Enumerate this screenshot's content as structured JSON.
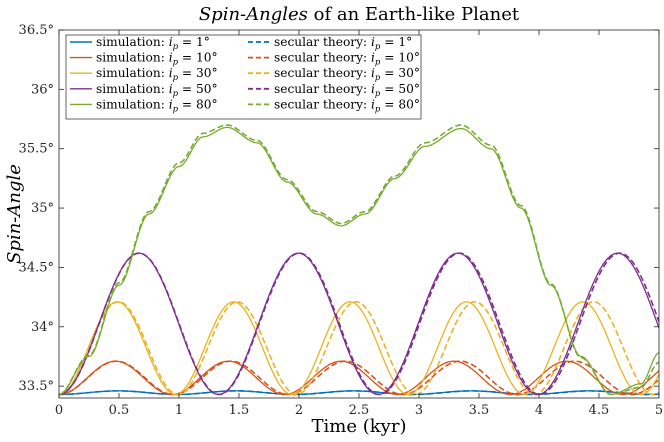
{
  "chart_data": {
    "type": "line",
    "title": "Spin-Angles of an Earth-like Planet",
    "title_parts": [
      {
        "text": "Spin-Angles",
        "italic": true
      },
      {
        "text": " of an Earth-like Planet",
        "italic": false
      }
    ],
    "xlabel": "Time (kyr)",
    "ylabel": "Spin-Angle",
    "xlim": [
      0,
      5
    ],
    "ylim": [
      33.4,
      36.5
    ],
    "xticks": [
      0,
      0.5,
      1,
      1.5,
      2,
      2.5,
      3,
      3.5,
      4,
      4.5,
      5
    ],
    "xtick_labels": [
      "0",
      "0.5",
      "1",
      "1.5",
      "2",
      "2.5",
      "3",
      "3.5",
      "4",
      "4.5",
      "5"
    ],
    "yticks": [
      33.5,
      34,
      34.5,
      35,
      35.5,
      36,
      36.5
    ],
    "ytick_labels": [
      "33.5°",
      "34°",
      "34.5°",
      "35°",
      "35.5°",
      "36°",
      "36.5°"
    ],
    "grid": false,
    "legend_position": "top-left",
    "colors": {
      "ip1": "#0072BD",
      "ip10": "#D95319",
      "ip30": "#EDB120",
      "ip50": "#7E2F8E",
      "ip80": "#77AC30"
    },
    "series": [
      {
        "name": "simulation: i_p = 1°",
        "legend_label": "simulation: ",
        "legend_value": "= 1°",
        "key": "ip1",
        "style": "solid",
        "model": {
          "base": 33.43,
          "amp": 0.03,
          "period": 0.98,
          "phase": 0
        }
      },
      {
        "name": "secular theory: i_p = 1°",
        "legend_label": "secular theory: ",
        "legend_value": "= 1°",
        "key": "ip1",
        "style": "dashed",
        "model": {
          "base": 33.43,
          "amp": 0.03,
          "period": 0.985,
          "phase": 0
        }
      },
      {
        "name": "simulation: i_p = 10°",
        "legend_label": "simulation: ",
        "legend_value": "= 10°",
        "key": "ip10",
        "style": "solid",
        "model": {
          "base": 33.43,
          "amp": 0.28,
          "period": 0.94,
          "phase": 0
        }
      },
      {
        "name": "secular theory: i_p = 10°",
        "legend_label": "secular theory: ",
        "legend_value": "= 10°",
        "key": "ip10",
        "style": "dashed",
        "model": {
          "base": 33.43,
          "amp": 0.28,
          "period": 0.955,
          "phase": 0
        }
      },
      {
        "name": "simulation: i_p = 30°",
        "legend_label": "simulation: ",
        "legend_value": "= 30°",
        "key": "ip30",
        "style": "solid",
        "model": {
          "base": 33.43,
          "amp": 0.78,
          "period": 0.97,
          "phase": 0
        }
      },
      {
        "name": "secular theory: i_p = 30°",
        "legend_label": "secular theory: ",
        "legend_value": "= 30°",
        "key": "ip30",
        "style": "dashed",
        "model": {
          "base": 33.43,
          "amp": 0.78,
          "period": 0.99,
          "phase": 0
        }
      },
      {
        "name": "simulation: i_p = 50°",
        "legend_label": "simulation: ",
        "legend_value": "= 50°",
        "key": "ip50",
        "style": "solid",
        "model": {
          "base": 33.43,
          "amp": 1.19,
          "period": 1.33,
          "phase": 0
        }
      },
      {
        "name": "secular theory: i_p = 50°",
        "legend_label": "secular theory: ",
        "legend_value": "= 50°",
        "key": "ip50",
        "style": "dashed",
        "model": {
          "base": 33.43,
          "amp": 1.19,
          "period": 1.335,
          "phase": 0
        }
      },
      {
        "name": "simulation: i_p = 80°",
        "legend_label": "simulation: ",
        "legend_value": "= 80°",
        "key": "ip80",
        "style": "solid",
        "model": {
          "knots_x": [
            0,
            0.25,
            0.5,
            0.75,
            1.0,
            1.2,
            1.4,
            1.65,
            1.9,
            2.15,
            2.35,
            2.55,
            2.8,
            3.05,
            3.35,
            3.6,
            3.85,
            4.1,
            4.35,
            4.6,
            4.85,
            5.0
          ],
          "knots_y": [
            33.43,
            33.75,
            34.35,
            34.95,
            35.35,
            35.6,
            35.68,
            35.55,
            35.22,
            34.95,
            34.85,
            34.95,
            35.25,
            35.52,
            35.67,
            35.5,
            35.0,
            34.35,
            33.75,
            33.43,
            33.52,
            33.78
          ]
        }
      },
      {
        "name": "secular theory: i_p = 80°",
        "legend_label": "secular theory: ",
        "legend_value": "= 80°",
        "key": "ip80",
        "style": "dashed",
        "model": {
          "knots_x": [
            0,
            0.25,
            0.5,
            0.75,
            1.0,
            1.2,
            1.4,
            1.65,
            1.9,
            2.15,
            2.35,
            2.55,
            2.8,
            3.05,
            3.35,
            3.6,
            3.85,
            4.1,
            4.35,
            4.6,
            4.85,
            5.0
          ],
          "knots_y": [
            33.43,
            33.76,
            34.37,
            34.97,
            35.38,
            35.63,
            35.7,
            35.57,
            35.24,
            34.97,
            34.87,
            34.97,
            35.27,
            35.55,
            35.7,
            35.53,
            35.02,
            34.36,
            33.74,
            33.43,
            33.49,
            33.7
          ]
        }
      }
    ]
  }
}
